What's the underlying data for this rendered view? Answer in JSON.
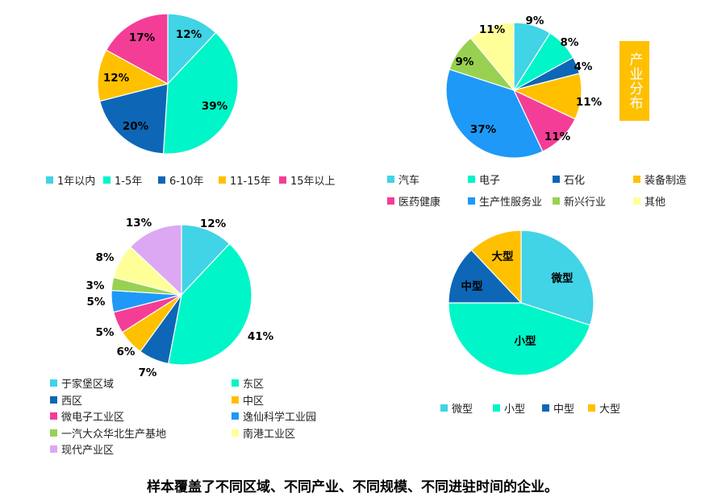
{
  "colors": {
    "cyan": "#41D3E6",
    "aqua": "#00F5C8",
    "navy": "#0D67B6",
    "orange": "#FFC000",
    "magenta": "#F43D97",
    "blue": "#1E99F7",
    "green": "#98D152",
    "yellow": "#FFFF99",
    "lavender": "#DDA8F3"
  },
  "side_label": "产业分布",
  "footer_note": "样本覆盖了不同区域、不同产业、不同规模、不同进驻时间的企业。",
  "chart_data": [
    {
      "type": "pie",
      "title": "",
      "categories": [
        "1年以内",
        "1-5年",
        "6-10年",
        "11-15年",
        "15年以上"
      ],
      "values": [
        12,
        39,
        20,
        12,
        17
      ],
      "labels": [
        "12%",
        "39%",
        "20%",
        "12%",
        "17%"
      ],
      "colors": [
        "#41D3E6",
        "#00F5C8",
        "#0D67B6",
        "#FFC000",
        "#F43D97"
      ],
      "legend": "bottom"
    },
    {
      "type": "pie",
      "title": "",
      "categories": [
        "汽车",
        "电子",
        "石化",
        "装备制造",
        "医药健康",
        "生产性服务业",
        "新兴行业",
        "其他"
      ],
      "values": [
        9,
        8,
        4,
        11,
        11,
        37,
        9,
        11
      ],
      "labels": [
        "9%",
        "8%",
        "4%",
        "11%",
        "11%",
        "37%",
        "9%",
        "11%"
      ],
      "colors": [
        "#41D3E6",
        "#00F5C8",
        "#0D67B6",
        "#FFC000",
        "#F43D97",
        "#1E99F7",
        "#98D152",
        "#FFFF99"
      ],
      "legend": "bottom"
    },
    {
      "type": "pie",
      "title": "",
      "categories": [
        "于家堡区域",
        "东区",
        "西区",
        "中区",
        "微电子工业区",
        "逸仙科学工业园",
        "一汽大众华北生产基地",
        "南港工业区",
        "现代产业区"
      ],
      "values": [
        12,
        41,
        7,
        6,
        5,
        5,
        3,
        8,
        13
      ],
      "labels": [
        "12%",
        "41%",
        "7%",
        "6%",
        "5%",
        "5%",
        "3%",
        "8%",
        "13%"
      ],
      "colors": [
        "#41D3E6",
        "#00F5C8",
        "#0D67B6",
        "#FFC000",
        "#F43D97",
        "#1E99F7",
        "#98D152",
        "#FFFF99",
        "#DDA8F3"
      ],
      "legend": "bottom"
    },
    {
      "type": "pie",
      "title": "",
      "categories": [
        "微型",
        "小型",
        "中型",
        "大型"
      ],
      "values": [
        30,
        45,
        13,
        12
      ],
      "labels": [
        "微型",
        "小型",
        "中型",
        "大型"
      ],
      "colors": [
        "#41D3E6",
        "#00F5C8",
        "#0D67B6",
        "#FFC000"
      ],
      "legend": "bottom"
    }
  ]
}
